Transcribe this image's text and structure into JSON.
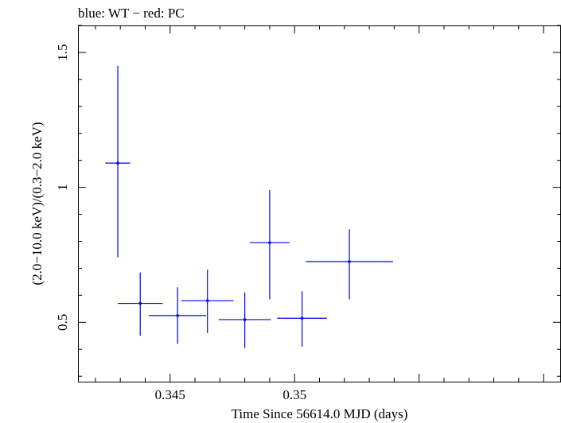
{
  "chart_data": {
    "type": "scatter",
    "title": "blue: WT − red: PC",
    "xlabel": "Time Since 56614.0 MJD (days)",
    "ylabel": "(2.0−10.0 keV)/(0.3−2.0 keV)",
    "xlim": [
      0.3413,
      0.3607
    ],
    "ylim": [
      0.28,
      1.6
    ],
    "x_ticks_major": [
      0.345,
      0.35
    ],
    "x_tick_labels": [
      "0.345",
      "0.35"
    ],
    "y_ticks_major": [
      0.5,
      1,
      1.5
    ],
    "y_tick_labels": [
      "0.5",
      "1",
      "1.5"
    ],
    "series": [
      {
        "name": "WT",
        "color": "#0000ff",
        "points": [
          {
            "x": 0.3429,
            "xerr": 0.0005,
            "y": 1.09,
            "ylo": 0.74,
            "yhi": 1.45
          },
          {
            "x": 0.3438,
            "xerr": 0.0009,
            "y": 0.57,
            "ylo": 0.45,
            "yhi": 0.685
          },
          {
            "x": 0.3453,
            "xerr": 0.00115,
            "y": 0.525,
            "ylo": 0.42,
            "yhi": 0.63
          },
          {
            "x": 0.3465,
            "xerr": 0.00105,
            "y": 0.58,
            "ylo": 0.46,
            "yhi": 0.695
          },
          {
            "x": 0.348,
            "xerr": 0.00105,
            "y": 0.51,
            "ylo": 0.405,
            "yhi": 0.61
          },
          {
            "x": 0.349,
            "xerr": 0.0008,
            "y": 0.795,
            "ylo": 0.585,
            "yhi": 0.99
          },
          {
            "x": 0.3503,
            "xerr": 0.001,
            "y": 0.515,
            "ylo": 0.41,
            "yhi": 0.615
          },
          {
            "x": 0.3522,
            "xerr": 0.00175,
            "y": 0.725,
            "ylo": 0.585,
            "yhi": 0.845
          }
        ]
      }
    ]
  }
}
